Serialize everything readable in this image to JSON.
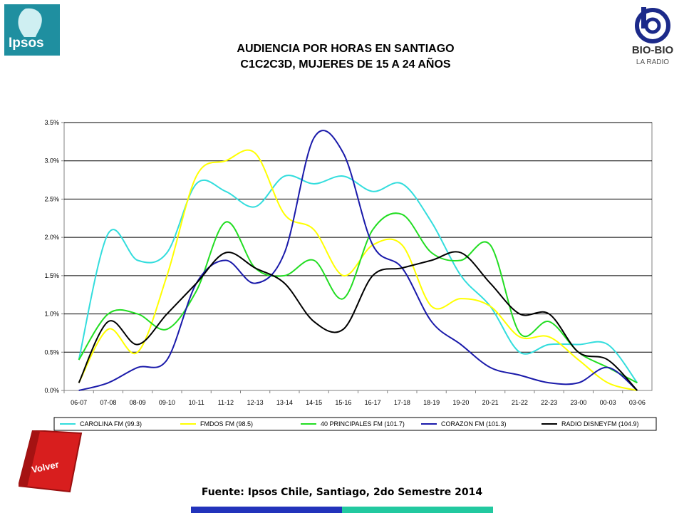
{
  "header": {
    "title_line1": "AUDIENCIA POR HORAS EN SANTIAGO",
    "title_line2": "C1C2C3D, MUJERES DE 15 A 24 AÑOS"
  },
  "logos": {
    "ipsos": "Ipsos",
    "biobio_name": "BIO-BIO",
    "biobio_sub": "LA RADIO"
  },
  "footer": {
    "source": "Fuente: Ipsos Chile, Santiago, 2do Semestre 2014",
    "volver_label": "Volver"
  },
  "chart_data": {
    "type": "line",
    "categories": [
      "06-07",
      "07-08",
      "08-09",
      "09-10",
      "10-11",
      "11-12",
      "12-13",
      "13-14",
      "14-15",
      "15-16",
      "16-17",
      "17-18",
      "18-19",
      "19-20",
      "20-21",
      "21-22",
      "22-23",
      "23-00",
      "00-03",
      "03-06"
    ],
    "ylim": [
      0,
      0.035
    ],
    "yticks": [
      "0.0%",
      "0.5%",
      "1.0%",
      "1.5%",
      "2.0%",
      "2.5%",
      "3.0%",
      "3.5%"
    ],
    "grid": true,
    "legend_position": "bottom",
    "series": [
      {
        "name": "CAROLINA FM (99.3)",
        "color": "#33dddd",
        "values": [
          0.4,
          2.05,
          1.7,
          1.8,
          2.7,
          2.6,
          2.4,
          2.8,
          2.7,
          2.8,
          2.6,
          2.7,
          2.2,
          1.5,
          1.1,
          0.5,
          0.6,
          0.6,
          0.6,
          0.1
        ]
      },
      {
        "name": "FMDOS FM (98.5)",
        "color": "#ffff00",
        "values": [
          0.1,
          0.8,
          0.5,
          1.5,
          2.8,
          3.0,
          3.1,
          2.3,
          2.1,
          1.5,
          1.9,
          1.9,
          1.1,
          1.2,
          1.1,
          0.7,
          0.7,
          0.4,
          0.1,
          0.0
        ]
      },
      {
        "name": "40 PRINCIPALES FM (101.7)",
        "color": "#22dd22",
        "values": [
          0.4,
          1.0,
          1.0,
          0.8,
          1.3,
          2.2,
          1.6,
          1.5,
          1.7,
          1.2,
          2.1,
          2.3,
          1.8,
          1.7,
          1.9,
          0.75,
          0.9,
          0.5,
          0.3,
          0.1
        ]
      },
      {
        "name": "CORAZON FM (101.3)",
        "color": "#1a1aaa",
        "values": [
          0.0,
          0.1,
          0.3,
          0.4,
          1.4,
          1.7,
          1.4,
          1.8,
          3.3,
          3.1,
          1.9,
          1.6,
          0.9,
          0.6,
          0.3,
          0.2,
          0.1,
          0.1,
          0.3,
          0.0
        ]
      },
      {
        "name": "RADIO DISNEYFM (104.9)",
        "color": "#000000",
        "values": [
          0.1,
          0.9,
          0.6,
          1.0,
          1.4,
          1.8,
          1.6,
          1.4,
          0.9,
          0.8,
          1.5,
          1.6,
          1.7,
          1.8,
          1.4,
          1.0,
          1.0,
          0.5,
          0.4,
          0.0
        ]
      }
    ]
  }
}
